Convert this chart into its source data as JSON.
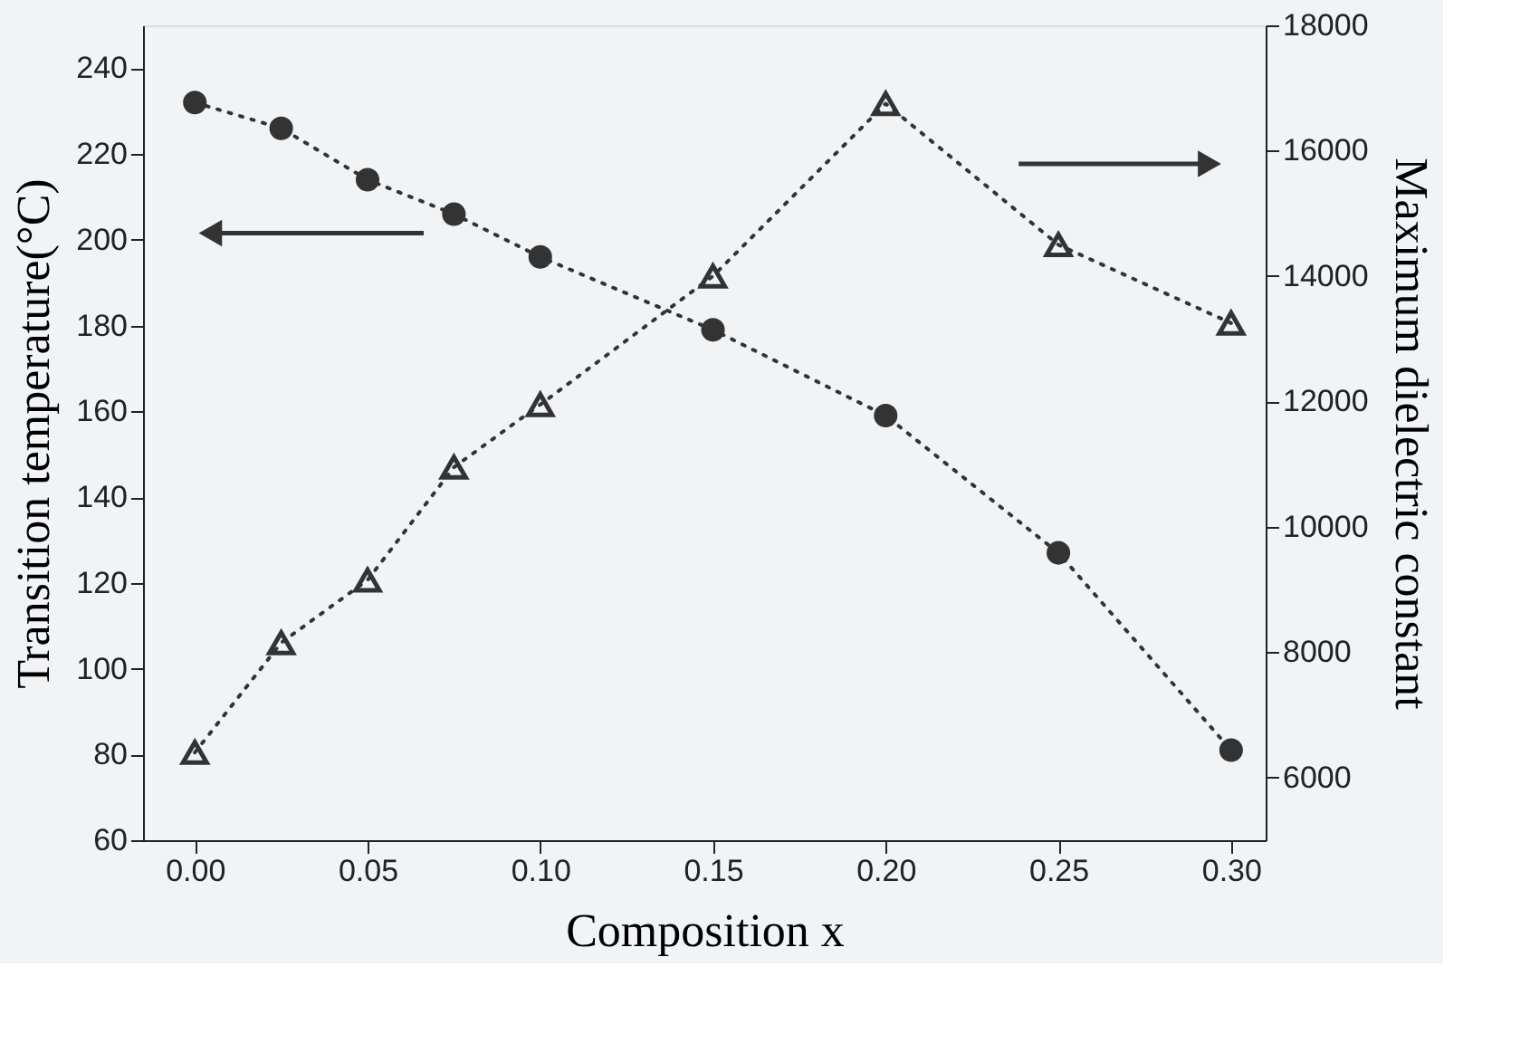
{
  "chart_data": {
    "type": "line",
    "xlabel": "Composition x",
    "ylabel": "Transition temperature(°C)",
    "y2label": "Maximum dielectric constant",
    "x": [
      0.0,
      0.025,
      0.05,
      0.075,
      0.1,
      0.15,
      0.2,
      0.25,
      0.3
    ],
    "series": [
      {
        "color": "#333333",
        "marker": "circle",
        "line_style": "dotted",
        "values": [
          232,
          226,
          214,
          206,
          196,
          179,
          159,
          127,
          81
        ]
      },
      {
        "color": "#333333",
        "marker": "triangle",
        "line_style": "dotted",
        "axis": "y2",
        "values": [
          6400,
          8150,
          9150,
          10950,
          11950,
          14000,
          16750,
          14500,
          13250
        ]
      }
    ],
    "xlim": [
      -0.015,
      0.31
    ],
    "xticks": [
      {
        "value": 0,
        "label": "0.00"
      },
      {
        "value": 0.05,
        "label": "0.05"
      },
      {
        "value": 0.1,
        "label": "0.10"
      },
      {
        "value": 0.15,
        "label": "0.15"
      },
      {
        "value": 0.2,
        "label": "0.20"
      },
      {
        "value": 0.25,
        "label": "0.25"
      },
      {
        "value": 0.3,
        "label": "0.30"
      }
    ],
    "ylim": [
      60,
      250
    ],
    "yticks": [
      60,
      80,
      100,
      120,
      140,
      160,
      180,
      200,
      220,
      240
    ],
    "y2lim": [
      5000,
      18000
    ],
    "y2ticks": [
      6000,
      8000,
      10000,
      12000,
      14000,
      16000,
      18000
    ],
    "grid": false
  }
}
